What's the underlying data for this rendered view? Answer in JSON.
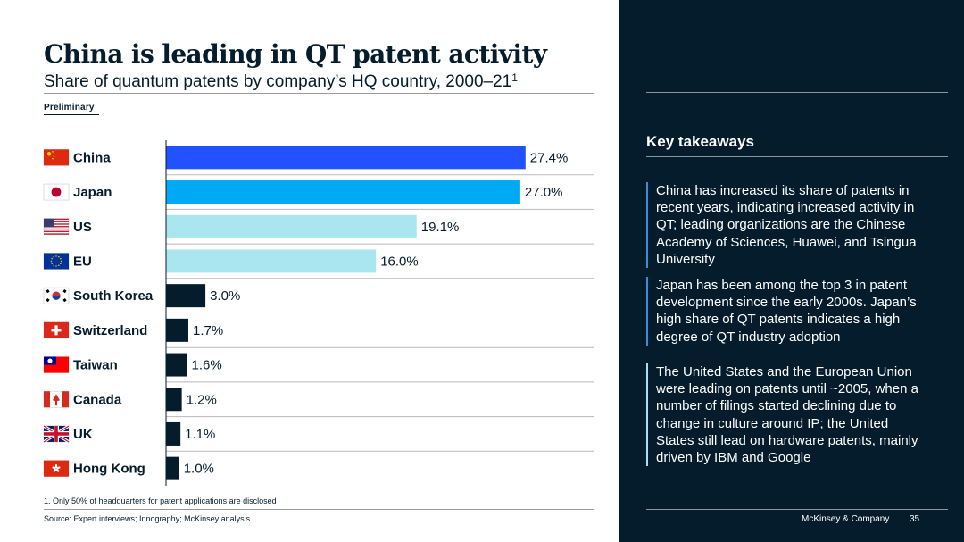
{
  "title": "China is leading in QT patent activity",
  "subtitle": "Share of quantum patents by company’s HQ country, 2000–21",
  "subtitle_sup": "1",
  "preliminary": "Preliminary",
  "footnote": "1. Only 50% of headquarters for patent applications are disclosed",
  "source": "Source: Expert interviews; Innography; McKinsey analysis",
  "chart_data": {
    "type": "bar",
    "orientation": "horizontal",
    "title": "Share of quantum patents by company’s HQ country, 2000–21",
    "unit": "%",
    "xlim": [
      0,
      30
    ],
    "categories": [
      "China",
      "Japan",
      "US",
      "EU",
      "South Korea",
      "Switzerland",
      "Taiwan",
      "Canada",
      "UK",
      "Hong Kong"
    ],
    "values": [
      27.4,
      27.0,
      19.1,
      16.0,
      3.0,
      1.7,
      1.6,
      1.2,
      1.1,
      1.0
    ],
    "value_labels": [
      "27.4%",
      "27.0%",
      "19.1%",
      "16.0%",
      "3.0%",
      "1.7%",
      "1.6%",
      "1.2%",
      "1.1%",
      "1.0%"
    ],
    "bar_colors": [
      "#2251ff",
      "#00a9f4",
      "#aae6f0",
      "#aae6f0",
      "#051c2c",
      "#051c2c",
      "#051c2c",
      "#051c2c",
      "#051c2c",
      "#051c2c"
    ],
    "flags": [
      "china-flag",
      "japan-flag",
      "us-flag",
      "eu-flag",
      "south-korea-flag",
      "switzerland-flag",
      "taiwan-flag",
      "canada-flag",
      "uk-flag",
      "hong-kong-flag"
    ]
  },
  "sidebar": {
    "heading": "Key takeaways",
    "takeaways": [
      "China has increased its share of patents in recent years, indicating increased activity in QT; leading organizations are the Chinese Academy of Sciences, Huawei, and Tsingua University",
      "Japan has been among the top 3 in patent development since the early 2000s. Japan’s high share of QT patents indicates a high degree of QT industry adoption",
      "The United States and the European Union were leading on patents until ~2005, when a number of filings started declining due to change in culture around IP; the United States still lead on hardware patents, mainly driven by IBM and Google"
    ],
    "brand": "McKinsey & Company",
    "page_number": "35"
  }
}
